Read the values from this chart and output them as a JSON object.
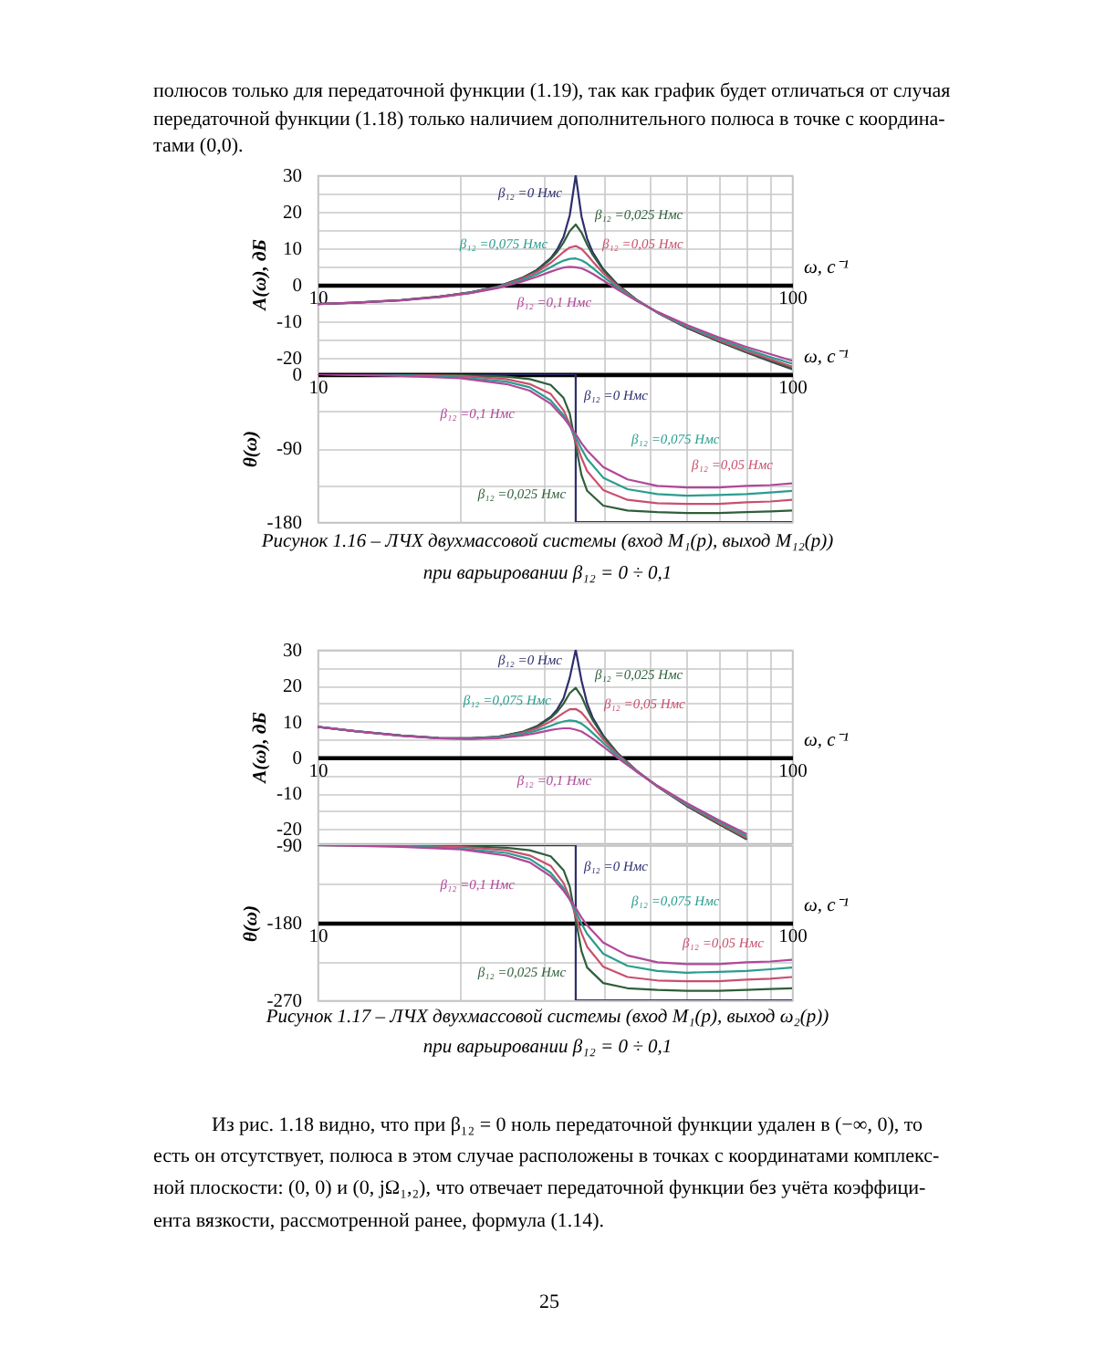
{
  "chart_data": [
    {
      "type": "line",
      "ylabel": "A(ω), дБ",
      "xlabel": "ω, с⁻¹",
      "annotations": [
        "полюсов только для передаточной функции (1.19), так как график будет отличаться от случая",
        "передаточной функции (1.18) только наличием дополнительного полюса в точке с координа-",
        "тами (0,0)."
      ],
      "log": "x",
      "xlim": [
        10,
        100
      ],
      "xticks": [
        10,
        {
          "value": 20,
          "label": null
        },
        {
          "value": 30,
          "label": null
        },
        {
          "value": 40,
          "label": null
        },
        {
          "value": 50,
          "label": null
        },
        {
          "value": 60,
          "label": null
        },
        {
          "value": 70,
          "label": null
        },
        {
          "value": 80,
          "label": null
        },
        {
          "value": 90,
          "label": null
        },
        100
      ],
      "ylim": [
        -24,
        30
      ],
      "yticks": [
        -20,
        {
          "value": -15,
          "label": null
        },
        -10,
        {
          "value": -5,
          "label": null
        },
        0,
        {
          "value": 5,
          "label": null
        },
        10,
        {
          "value": 15,
          "label": null
        },
        20,
        {
          "value": 25,
          "label": null
        },
        30
      ],
      "grid": true,
      "x": [
        10,
        12,
        15,
        18,
        21,
        24,
        27,
        29,
        31,
        32,
        33,
        34,
        35,
        36,
        37,
        38,
        40,
        43,
        47,
        52,
        60,
        70,
        80,
        90,
        100
      ],
      "series": [
        {
          "name": "β₁₂ =0 Нмс",
          "color": "#2e2e6e",
          "values": [
            -5.3,
            -4.9,
            -4.2,
            -3.3,
            -2.1,
            -0.5,
            1.9,
            4.1,
            7.3,
            9.7,
            13.1,
            19.0,
            30,
            18.7,
            12.6,
            8.9,
            4.3,
            -0.1,
            -4.1,
            -7.6,
            -11.8,
            -15.5,
            -18.5,
            -21.0,
            -23.1
          ]
        },
        {
          "name": "β₁₂ =0,025 Нмс",
          "color": "#2f5f3a",
          "values": [
            -5.3,
            -4.9,
            -4.2,
            -3.3,
            -2.1,
            -0.5,
            1.8,
            3.9,
            7.0,
            9.0,
            11.6,
            14.7,
            16.5,
            14.3,
            11.0,
            8.2,
            4.0,
            -0.2,
            -4.1,
            -7.6,
            -11.7,
            -15.5,
            -18.4,
            -20.8,
            -22.9
          ]
        },
        {
          "name": "β₁₂ =0,05 Нмс",
          "color": "#c8506e",
          "values": [
            null,
            null,
            null,
            -3.3,
            -2.2,
            -0.6,
            1.6,
            3.5,
            6.0,
            7.5,
            9.0,
            10.2,
            10.6,
            9.8,
            8.2,
            6.4,
            3.2,
            -0.5,
            -4.2,
            -7.6,
            -11.5,
            -15.2,
            -18.1,
            -20.4,
            -22.4
          ]
        },
        {
          "name": "β₁₂ =0,075 Нмс",
          "color": "#2a9d8f",
          "values": [
            null,
            null,
            null,
            -3.4,
            -2.2,
            -0.7,
            1.3,
            2.9,
            4.8,
            5.8,
            6.6,
            7.1,
            7.2,
            6.7,
            5.8,
            4.6,
            2.2,
            -0.9,
            -4.3,
            -7.5,
            -11.3,
            -14.8,
            -17.6,
            -19.8,
            -21.6
          ]
        },
        {
          "name": "β₁₂ =0,1 Нмс",
          "color": "#b0489a",
          "values": [
            -5.3,
            -4.9,
            -4.3,
            -3.4,
            -2.3,
            -0.9,
            0.9,
            2.2,
            3.6,
            4.2,
            4.7,
            4.9,
            4.8,
            4.5,
            3.8,
            3.0,
            1.2,
            -1.4,
            -4.4,
            -7.4,
            -11.0,
            -14.4,
            -17.0,
            -19.0,
            -20.8
          ]
        }
      ]
    },
    {
      "type": "line",
      "ylabel": "θ(ω)",
      "xlabel": "ω, с⁻¹",
      "annotations": [
        "Рисунок 1.16 – ЛЧХ двухмассовой системы (вход M₁(p), выход M₁₂(p))",
        "при варьировании β₁₂ = 0 ÷ 0,1"
      ],
      "log": "x",
      "xlim": [
        10,
        100
      ],
      "xticks": [
        10,
        {
          "value": 20,
          "label": null
        },
        {
          "value": 30,
          "label": null
        },
        {
          "value": 40,
          "label": null
        },
        {
          "value": 50,
          "label": null
        },
        {
          "value": 60,
          "label": null
        },
        {
          "value": 70,
          "label": null
        },
        {
          "value": 80,
          "label": null
        },
        {
          "value": 90,
          "label": null
        },
        100
      ],
      "ylim": [
        -180,
        0
      ],
      "yticks": [
        -180,
        {
          "value": -135,
          "label": null
        },
        -90,
        {
          "value": -45,
          "label": null
        },
        0
      ],
      "grid": true,
      "x": [
        10,
        15,
        20,
        25,
        28,
        31,
        33,
        34,
        35,
        36,
        37,
        40,
        45,
        52,
        60,
        70,
        80,
        90,
        100
      ],
      "series": [
        {
          "name": "β₁₂ =0 Нмс",
          "color": "#2e2e6e",
          "x": [
            10,
            35,
            35,
            100
          ],
          "values": [
            0,
            0,
            -180,
            -180
          ]
        },
        {
          "name": "β₁₂ =0,025 Нмс",
          "color": "#2f5f3a",
          "values": [
            0,
            0,
            -1,
            -3,
            -6,
            -13,
            -29,
            -48,
            -86,
            -123,
            -142,
            -160,
            -166,
            -168,
            -169,
            -169,
            -168,
            -167,
            -166
          ]
        },
        {
          "name": "β₁₂ =0,05 Нмс",
          "color": "#c8506e",
          "values": [
            0,
            -1,
            -2,
            -6,
            -12,
            -24,
            -44,
            -61,
            -82,
            -102,
            -118,
            -141,
            -153,
            -157,
            -158,
            -158,
            -156,
            -155,
            -153
          ]
        },
        {
          "name": "β₁₂ =0,075 Нмс",
          "color": "#2a9d8f",
          "values": [
            0,
            -1,
            -4,
            -9,
            -16,
            -32,
            -50,
            -63,
            -77,
            -91,
            -103,
            -126,
            -140,
            -146,
            -148,
            -147,
            -146,
            -144,
            -142
          ]
        },
        {
          "name": "β₁₂ =0,1 Нмс",
          "color": "#b0489a",
          "values": [
            0,
            -2,
            -5,
            -12,
            -20,
            -36,
            -53,
            -63,
            -73,
            -84,
            -93,
            -113,
            -128,
            -136,
            -138,
            -138,
            -136,
            -135,
            -133
          ]
        }
      ]
    },
    {
      "type": "line",
      "ylabel": "A(ω), дБ",
      "xlabel": "ω, с⁻¹",
      "log": "x",
      "xlim": [
        10,
        100
      ],
      "xticks": [
        10,
        {
          "value": 20,
          "label": null
        },
        {
          "value": 30,
          "label": null
        },
        {
          "value": 40,
          "label": null
        },
        {
          "value": 50,
          "label": null
        },
        {
          "value": 60,
          "label": null
        },
        {
          "value": 70,
          "label": null
        },
        {
          "value": 80,
          "label": null
        },
        {
          "value": 90,
          "label": null
        },
        100
      ],
      "ylim": [
        -24,
        30
      ],
      "yticks": [
        -20,
        {
          "value": -15,
          "label": null
        },
        -10,
        {
          "value": -5,
          "label": null
        },
        0,
        {
          "value": 5,
          "label": null
        },
        10,
        {
          "value": 15,
          "label": null
        },
        20,
        {
          "value": 25,
          "label": null
        },
        30
      ],
      "grid": true,
      "x": [
        10,
        12,
        15,
        18,
        21,
        24,
        27,
        29,
        31,
        32,
        33,
        34,
        35,
        36,
        37,
        38,
        40,
        43,
        47,
        52,
        60,
        70,
        80
      ],
      "series": [
        {
          "name": "β₁₂ =0 Нмс",
          "color": "#2e2e6e",
          "values": [
            8.5,
            7.3,
            6.1,
            5.4,
            5.3,
            5.7,
            7.1,
            8.7,
            11.3,
            13.4,
            16.5,
            22.2,
            30,
            21.4,
            15.0,
            11.1,
            6.1,
            1.0,
            -3.7,
            -8.1,
            -13.6,
            -18.6,
            -22.8
          ]
        },
        {
          "name": "β₁₂ =0,025 Нмс",
          "color": "#2f5f3a",
          "values": [
            8.5,
            7.3,
            6.1,
            5.4,
            5.3,
            5.7,
            7.0,
            8.5,
            11.0,
            12.7,
            15.0,
            17.9,
            19.4,
            17.0,
            13.4,
            10.4,
            5.8,
            0.9,
            -3.7,
            -8.1,
            -13.5,
            -18.6,
            -22.7
          ]
        },
        {
          "name": "β₁₂ =0,05 Нмс",
          "color": "#c8506e",
          "values": [
            null,
            null,
            null,
            null,
            5.2,
            5.6,
            6.8,
            8.1,
            10.0,
            11.2,
            12.4,
            13.4,
            13.5,
            12.5,
            10.6,
            8.6,
            5.0,
            0.6,
            -3.8,
            -8.1,
            -13.3,
            -18.3,
            -22.4
          ]
        },
        {
          "name": "β₁₂ =0,075 Нмс",
          "color": "#2a9d8f",
          "values": [
            8.5,
            7.3,
            6.0,
            5.3,
            5.2,
            5.5,
            6.5,
            7.5,
            8.8,
            9.5,
            10.0,
            10.3,
            10.1,
            9.4,
            8.2,
            6.8,
            4.0,
            0.2,
            -3.9,
            -8.0,
            -13.1,
            -17.9,
            -21.9
          ]
        },
        {
          "name": "β₁₂ =0,1 Нмс",
          "color": "#b0489a",
          "values": [
            8.5,
            7.3,
            6.0,
            5.3,
            5.1,
            5.3,
            6.1,
            6.8,
            7.6,
            7.9,
            8.1,
            8.1,
            7.7,
            7.2,
            6.2,
            5.2,
            3.0,
            -0.3,
            -4.0,
            -7.9,
            -12.8,
            -17.5,
            -21.3
          ]
        }
      ]
    },
    {
      "type": "line",
      "ylabel": "θ(ω)",
      "xlabel": "ω, с⁻¹",
      "annotations": [
        "Рисунок 1.17 – ЛЧХ двухмассовой системы (вход M₁(p), выход ω₂(p))",
        "при варьировании β₁₂ = 0 ÷ 0,1",
        "Из рис. 1.18 видно, что при β₁₂ = 0 ноль передаточной функции удален в (−∞, 0), то",
        "есть он отсутствует, полюса в этом случае расположены в точках с координатами комплекс-",
        "ной плоскости: (0, 0) и (0, jΩ₁,₂), что отвечает передаточной функции без учёта коэффици-",
        "ента вязкости, рассмотренной ранее, формула (1.14).",
        "25"
      ],
      "log": "x",
      "xlim": [
        10,
        100
      ],
      "xticks": [
        10,
        {
          "value": 20,
          "label": null
        },
        {
          "value": 30,
          "label": null
        },
        {
          "value": 40,
          "label": null
        },
        {
          "value": 50,
          "label": null
        },
        {
          "value": 60,
          "label": null
        },
        {
          "value": 70,
          "label": null
        },
        {
          "value": 80,
          "label": null
        },
        {
          "value": 90,
          "label": null
        },
        100
      ],
      "ylim": [
        -270,
        -90
      ],
      "yticks": [
        -270,
        {
          "value": -225,
          "label": null
        },
        -180,
        {
          "value": -135,
          "label": null
        },
        -90
      ],
      "grid": true,
      "x": [
        10,
        15,
        20,
        25,
        28,
        31,
        33,
        34,
        35,
        36,
        37,
        40,
        45,
        52,
        60,
        70,
        80,
        90,
        100
      ],
      "series": [
        {
          "name": "β₁₂ =0 Нмс",
          "color": "#2e2e6e",
          "x": [
            10,
            35,
            35,
            100
          ],
          "values": [
            -90,
            -90,
            -270,
            -270
          ]
        },
        {
          "name": "β₁₂ =0,025 Нмс",
          "color": "#2f5f3a",
          "values": [
            -90,
            -90,
            -91,
            -93,
            -96,
            -103,
            -119,
            -138,
            -176,
            -213,
            -232,
            -250,
            -256,
            -258,
            -259,
            -259,
            -258,
            -257,
            -256
          ]
        },
        {
          "name": "β₁₂ =0,05 Нмс",
          "color": "#c8506e",
          "values": [
            -90,
            -91,
            -92,
            -96,
            -102,
            -114,
            -134,
            -151,
            -172,
            -192,
            -208,
            -231,
            -243,
            -247,
            -248,
            -248,
            -246,
            -245,
            -243
          ]
        },
        {
          "name": "β₁₂ =0,075 Нмс",
          "color": "#2a9d8f",
          "values": [
            -90,
            -91,
            -94,
            -99,
            -106,
            -122,
            -140,
            -153,
            -167,
            -181,
            -193,
            -216,
            -230,
            -236,
            -238,
            -237,
            -236,
            -234,
            -232
          ]
        },
        {
          "name": "β₁₂ =0,1 Нмс",
          "color": "#b0489a",
          "values": [
            -90,
            -92,
            -95,
            -102,
            -110,
            -126,
            -143,
            -153,
            -163,
            -174,
            -183,
            -203,
            -218,
            -226,
            -228,
            -228,
            -226,
            -225,
            -223
          ]
        }
      ]
    }
  ]
}
